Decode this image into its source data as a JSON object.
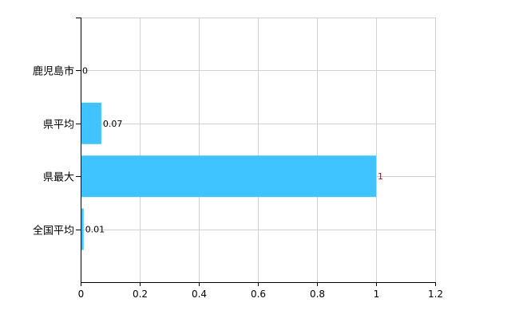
{
  "chart_data": {
    "type": "bar",
    "orientation": "horizontal",
    "categories": [
      "鹿児島市",
      "県平均",
      "県最大",
      "全国平均"
    ],
    "values": [
      0,
      0.07,
      1,
      0.01
    ],
    "data_labels": [
      "0",
      "0.07",
      "1",
      "0.01"
    ],
    "xlim": [
      0,
      1.2
    ],
    "xticks": [
      "0",
      "0.2",
      "0.4",
      "0.6",
      "0.8",
      "1",
      "1.2"
    ],
    "title": "",
    "xlabel": "",
    "ylabel": "",
    "grid": true,
    "bar_color": "#40c4ff",
    "highlight_label_color": "#8b1a1a"
  }
}
